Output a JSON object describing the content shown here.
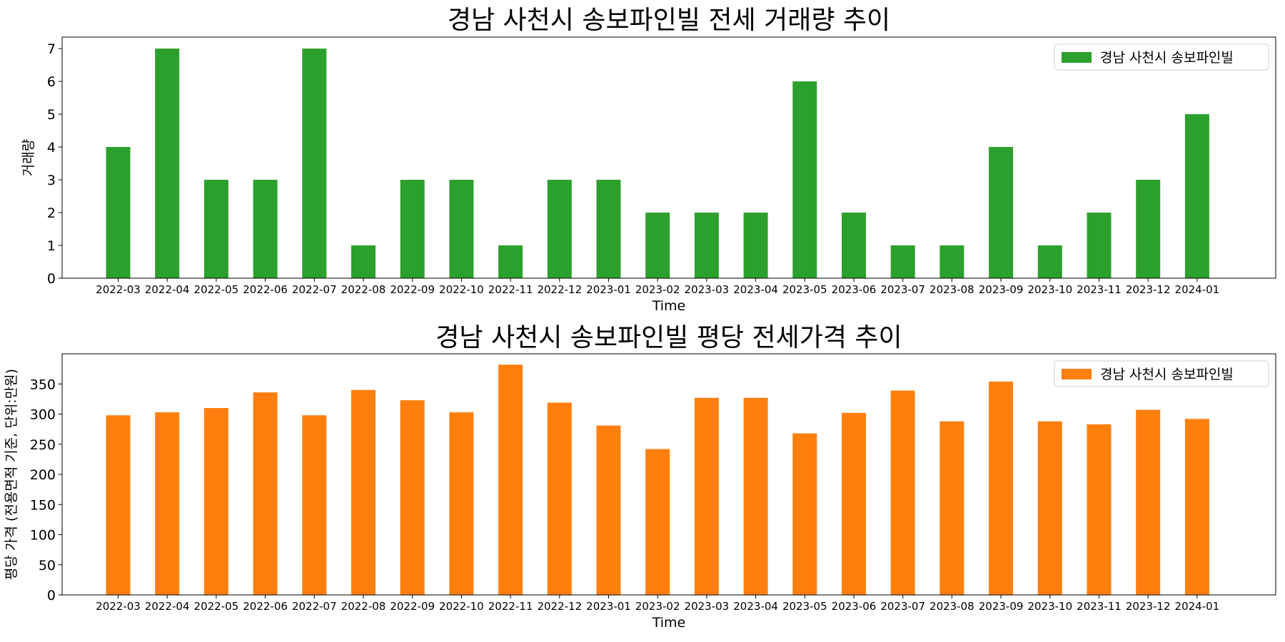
{
  "chart_data": [
    {
      "type": "bar",
      "title": "경남 사천시 송보파인빌 전세 거래량 추이",
      "xlabel": "Time",
      "ylabel": "거래량",
      "ylim": [
        0,
        7.35
      ],
      "yticks": [
        0,
        1,
        2,
        3,
        4,
        5,
        6,
        7
      ],
      "grid": false,
      "legend": "top-right",
      "color": "#2ca02c",
      "categories": [
        "2022-03",
        "2022-04",
        "2022-05",
        "2022-06",
        "2022-07",
        "2022-08",
        "2022-09",
        "2022-10",
        "2022-11",
        "2022-12",
        "2023-01",
        "2023-02",
        "2023-03",
        "2023-04",
        "2023-05",
        "2023-06",
        "2023-07",
        "2023-08",
        "2023-09",
        "2023-10",
        "2023-11",
        "2023-12",
        "2024-01"
      ],
      "series": [
        {
          "name": "경남 사천시 송보파인빌",
          "values": [
            4,
            7,
            3,
            3,
            7,
            1,
            3,
            3,
            1,
            3,
            3,
            2,
            2,
            2,
            6,
            2,
            1,
            1,
            4,
            1,
            2,
            3,
            5
          ]
        }
      ]
    },
    {
      "type": "bar",
      "title": "경남 사천시 송보파인빌 평당 전세가격 추이",
      "xlabel": "Time",
      "ylabel": "평당 가격 (전용면적 기준, 단위:만원)",
      "ylim": [
        0,
        400
      ],
      "yticks": [
        0,
        50,
        100,
        150,
        200,
        250,
        300,
        350
      ],
      "grid": false,
      "legend": "top-right",
      "color": "#ff7f0e",
      "categories": [
        "2022-03",
        "2022-04",
        "2022-05",
        "2022-06",
        "2022-07",
        "2022-08",
        "2022-09",
        "2022-10",
        "2022-11",
        "2022-12",
        "2023-01",
        "2023-02",
        "2023-03",
        "2023-04",
        "2023-05",
        "2023-06",
        "2023-07",
        "2023-08",
        "2023-09",
        "2023-10",
        "2023-11",
        "2023-12",
        "2024-01"
      ],
      "series": [
        {
          "name": "경남 사천시 송보파인빌",
          "values": [
            298,
            303,
            310,
            336,
            298,
            340,
            323,
            303,
            382,
            319,
            281,
            242,
            327,
            327,
            268,
            302,
            339,
            288,
            354,
            288,
            283,
            307,
            292
          ]
        }
      ]
    }
  ]
}
